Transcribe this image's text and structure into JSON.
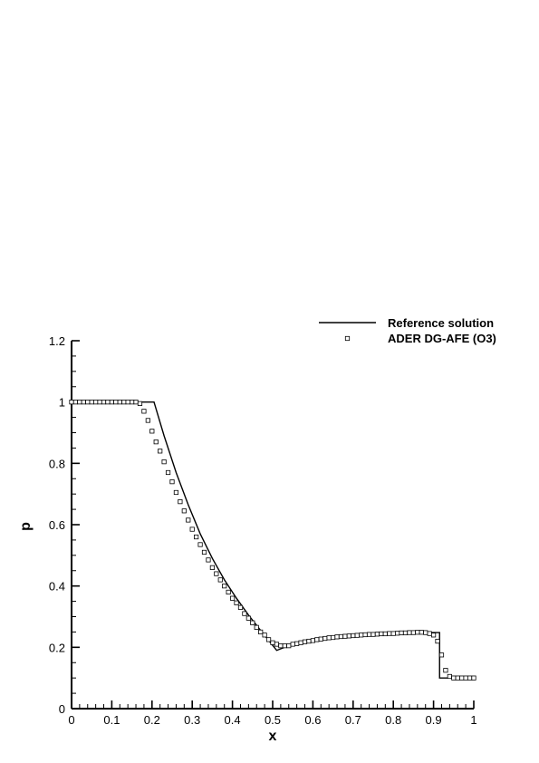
{
  "chart_data": {
    "type": "line",
    "title": "",
    "xlabel": "x",
    "ylabel": "p",
    "xlim": [
      0,
      1
    ],
    "ylim": [
      0,
      1.2
    ],
    "x_ticks": [
      0,
      0.1,
      0.2,
      0.3,
      0.4,
      0.5,
      0.6,
      0.7,
      0.8,
      0.9,
      1
    ],
    "x_tick_labels": [
      "0",
      "0.1",
      "0.2",
      "0.3",
      "0.4",
      "0.5",
      "0.6",
      "0.7",
      "0.8",
      "0.9",
      "1"
    ],
    "y_ticks": [
      0,
      0.2,
      0.4,
      0.6,
      0.8,
      1,
      1.2
    ],
    "y_tick_labels": [
      "0",
      "0.2",
      "0.4",
      "0.6",
      "0.8",
      "1",
      "1.2"
    ],
    "grid": false,
    "legend_position": "top-right",
    "series": [
      {
        "name": "Reference solution",
        "style": "line",
        "color": "#000000",
        "points": [
          [
            0,
            1.0
          ],
          [
            0.205,
            1.0
          ],
          [
            0.23,
            0.89
          ],
          [
            0.26,
            0.77
          ],
          [
            0.29,
            0.665
          ],
          [
            0.32,
            0.57
          ],
          [
            0.35,
            0.49
          ],
          [
            0.38,
            0.42
          ],
          [
            0.41,
            0.36
          ],
          [
            0.44,
            0.305
          ],
          [
            0.47,
            0.255
          ],
          [
            0.51,
            0.19
          ],
          [
            0.54,
            0.205
          ],
          [
            0.58,
            0.218
          ],
          [
            0.62,
            0.228
          ],
          [
            0.66,
            0.234
          ],
          [
            0.7,
            0.238
          ],
          [
            0.75,
            0.241
          ],
          [
            0.8,
            0.244
          ],
          [
            0.85,
            0.247
          ],
          [
            0.88,
            0.248
          ],
          [
            0.915,
            0.248
          ],
          [
            0.915,
            0.1
          ],
          [
            1.0,
            0.1
          ]
        ]
      },
      {
        "name": "ADER DG-AFE (O3)",
        "style": "markers",
        "marker": "square",
        "color": "#000000",
        "points": [
          [
            0.0,
            1.0
          ],
          [
            0.01,
            1.0
          ],
          [
            0.02,
            1.0
          ],
          [
            0.03,
            1.0
          ],
          [
            0.04,
            1.0
          ],
          [
            0.05,
            1.0
          ],
          [
            0.06,
            1.0
          ],
          [
            0.07,
            1.0
          ],
          [
            0.08,
            1.0
          ],
          [
            0.09,
            1.0
          ],
          [
            0.1,
            1.0
          ],
          [
            0.11,
            1.0
          ],
          [
            0.12,
            1.0
          ],
          [
            0.13,
            1.0
          ],
          [
            0.14,
            1.0
          ],
          [
            0.15,
            1.0
          ],
          [
            0.16,
            1.0
          ],
          [
            0.17,
            0.995
          ],
          [
            0.18,
            0.97
          ],
          [
            0.19,
            0.94
          ],
          [
            0.2,
            0.905
          ],
          [
            0.21,
            0.87
          ],
          [
            0.22,
            0.84
          ],
          [
            0.23,
            0.805
          ],
          [
            0.24,
            0.77
          ],
          [
            0.25,
            0.74
          ],
          [
            0.26,
            0.705
          ],
          [
            0.27,
            0.675
          ],
          [
            0.28,
            0.645
          ],
          [
            0.29,
            0.615
          ],
          [
            0.3,
            0.585
          ],
          [
            0.31,
            0.56
          ],
          [
            0.32,
            0.535
          ],
          [
            0.33,
            0.51
          ],
          [
            0.34,
            0.485
          ],
          [
            0.35,
            0.46
          ],
          [
            0.36,
            0.44
          ],
          [
            0.37,
            0.42
          ],
          [
            0.38,
            0.4
          ],
          [
            0.39,
            0.38
          ],
          [
            0.4,
            0.36
          ],
          [
            0.41,
            0.345
          ],
          [
            0.42,
            0.33
          ],
          [
            0.43,
            0.31
          ],
          [
            0.44,
            0.295
          ],
          [
            0.45,
            0.28
          ],
          [
            0.46,
            0.265
          ],
          [
            0.47,
            0.25
          ],
          [
            0.48,
            0.24
          ],
          [
            0.49,
            0.225
          ],
          [
            0.5,
            0.215
          ],
          [
            0.51,
            0.21
          ],
          [
            0.52,
            0.205
          ],
          [
            0.53,
            0.205
          ],
          [
            0.54,
            0.205
          ],
          [
            0.55,
            0.21
          ],
          [
            0.56,
            0.212
          ],
          [
            0.57,
            0.215
          ],
          [
            0.58,
            0.218
          ],
          [
            0.59,
            0.22
          ],
          [
            0.6,
            0.222
          ],
          [
            0.61,
            0.225
          ],
          [
            0.62,
            0.227
          ],
          [
            0.63,
            0.229
          ],
          [
            0.64,
            0.231
          ],
          [
            0.65,
            0.232
          ],
          [
            0.66,
            0.234
          ],
          [
            0.67,
            0.235
          ],
          [
            0.68,
            0.236
          ],
          [
            0.69,
            0.237
          ],
          [
            0.7,
            0.238
          ],
          [
            0.71,
            0.239
          ],
          [
            0.72,
            0.24
          ],
          [
            0.73,
            0.241
          ],
          [
            0.74,
            0.242
          ],
          [
            0.75,
            0.242
          ],
          [
            0.76,
            0.243
          ],
          [
            0.77,
            0.244
          ],
          [
            0.78,
            0.244
          ],
          [
            0.79,
            0.245
          ],
          [
            0.8,
            0.245
          ],
          [
            0.81,
            0.246
          ],
          [
            0.82,
            0.247
          ],
          [
            0.83,
            0.247
          ],
          [
            0.84,
            0.248
          ],
          [
            0.85,
            0.248
          ],
          [
            0.86,
            0.249
          ],
          [
            0.87,
            0.249
          ],
          [
            0.88,
            0.248
          ],
          [
            0.89,
            0.245
          ],
          [
            0.9,
            0.24
          ],
          [
            0.91,
            0.22
          ],
          [
            0.92,
            0.175
          ],
          [
            0.93,
            0.125
          ],
          [
            0.94,
            0.105
          ],
          [
            0.95,
            0.1
          ],
          [
            0.96,
            0.1
          ],
          [
            0.97,
            0.1
          ],
          [
            0.98,
            0.1
          ],
          [
            0.99,
            0.1
          ],
          [
            1.0,
            0.1
          ]
        ]
      }
    ]
  }
}
